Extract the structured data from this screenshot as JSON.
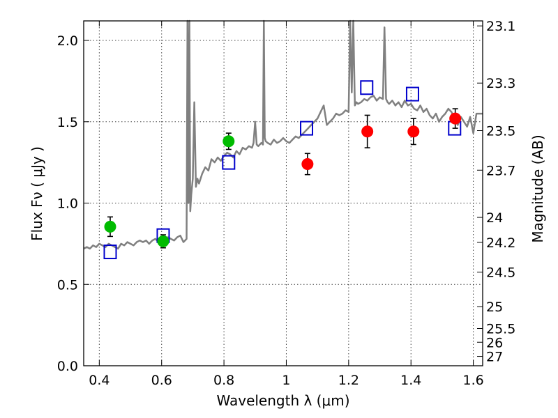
{
  "chart_data": {
    "type": "scatter",
    "xlabel": "Wavelength  λ (μm)",
    "ylabel": "Flux  Fν  ( μJy )",
    "y2label": "Magnitude (AB)",
    "xlim": [
      0.35,
      1.63
    ],
    "ylim": [
      0.0,
      2.12
    ],
    "x_ticks": [
      0.4,
      0.6,
      0.8,
      1.0,
      1.2,
      1.4,
      1.6
    ],
    "x_tick_labels": [
      "0.4",
      "0.6",
      "0.8",
      "1",
      "1.2",
      "1.4",
      "1.6"
    ],
    "y_ticks": [
      0.0,
      0.5,
      1.0,
      1.5,
      2.0
    ],
    "y_tick_labels": [
      "0.0",
      "0.5",
      "1.0",
      "1.5",
      "2.0"
    ],
    "y2_ticks": [
      "23.1",
      "23.3",
      "23.5",
      "23.7",
      "24",
      "24.2",
      "24.5",
      "25",
      "25.5",
      "26",
      "27"
    ],
    "grid": true,
    "colors": {
      "spectrum": "#808080",
      "green_points": "#00bb00",
      "red_points": "#ff0000",
      "model_squares": "#0000cc",
      "error_bars": "#000000"
    },
    "series": [
      {
        "kind": "line",
        "x": [
          0.35,
          0.36,
          0.37,
          0.38,
          0.39,
          0.4,
          0.41,
          0.42,
          0.43,
          0.44,
          0.45,
          0.46,
          0.47,
          0.48,
          0.49,
          0.5,
          0.51,
          0.52,
          0.53,
          0.54,
          0.55,
          0.56,
          0.57,
          0.58,
          0.59,
          0.6,
          0.61,
          0.62,
          0.63,
          0.64,
          0.65,
          0.66,
          0.67,
          0.68,
          0.683,
          0.686,
          0.689,
          0.692,
          0.695,
          0.7,
          0.705,
          0.71,
          0.715,
          0.72,
          0.73,
          0.74,
          0.75,
          0.76,
          0.77,
          0.78,
          0.79,
          0.8,
          0.81,
          0.82,
          0.83,
          0.84,
          0.85,
          0.86,
          0.87,
          0.88,
          0.89,
          0.895,
          0.9,
          0.905,
          0.91,
          0.92,
          0.925,
          0.928,
          0.931,
          0.934,
          0.94,
          0.95,
          0.96,
          0.97,
          0.98,
          0.99,
          1.0,
          1.01,
          1.02,
          1.03,
          1.04,
          1.05,
          1.06,
          1.07,
          1.08,
          1.09,
          1.1,
          1.11,
          1.12,
          1.13,
          1.14,
          1.15,
          1.16,
          1.17,
          1.18,
          1.19,
          1.2,
          1.205,
          1.21,
          1.215,
          1.22,
          1.225,
          1.23,
          1.24,
          1.25,
          1.26,
          1.27,
          1.28,
          1.29,
          1.3,
          1.31,
          1.315,
          1.32,
          1.325,
          1.33,
          1.34,
          1.35,
          1.36,
          1.37,
          1.38,
          1.39,
          1.4,
          1.41,
          1.42,
          1.43,
          1.44,
          1.45,
          1.46,
          1.47,
          1.48,
          1.49,
          1.5,
          1.51,
          1.52,
          1.53,
          1.54,
          1.55,
          1.56,
          1.57,
          1.58,
          1.59,
          1.6,
          1.61,
          1.62,
          1.63
        ],
        "y": [
          0.72,
          0.73,
          0.72,
          0.74,
          0.73,
          0.75,
          0.74,
          0.73,
          0.75,
          0.74,
          0.73,
          0.72,
          0.75,
          0.74,
          0.76,
          0.75,
          0.74,
          0.76,
          0.77,
          0.76,
          0.77,
          0.75,
          0.77,
          0.78,
          0.76,
          0.77,
          0.78,
          0.79,
          0.78,
          0.77,
          0.79,
          0.8,
          0.76,
          0.78,
          2.12,
          1.0,
          2.12,
          0.95,
          1.05,
          1.15,
          1.62,
          1.1,
          1.15,
          1.12,
          1.18,
          1.22,
          1.2,
          1.27,
          1.25,
          1.28,
          1.26,
          1.29,
          1.31,
          1.3,
          1.28,
          1.32,
          1.3,
          1.34,
          1.33,
          1.35,
          1.34,
          1.37,
          1.5,
          1.36,
          1.35,
          1.37,
          1.36,
          2.12,
          1.4,
          1.38,
          1.37,
          1.36,
          1.39,
          1.37,
          1.38,
          1.4,
          1.38,
          1.37,
          1.39,
          1.41,
          1.4,
          1.42,
          1.44,
          1.46,
          1.48,
          1.5,
          1.52,
          1.56,
          1.6,
          1.48,
          1.5,
          1.52,
          1.55,
          1.54,
          1.55,
          1.57,
          1.56,
          2.12,
          1.68,
          2.12,
          1.6,
          1.62,
          1.61,
          1.62,
          1.64,
          1.63,
          1.65,
          1.66,
          1.63,
          1.65,
          1.64,
          2.08,
          1.64,
          1.62,
          1.61,
          1.63,
          1.6,
          1.62,
          1.59,
          1.63,
          1.6,
          1.61,
          1.58,
          1.57,
          1.6,
          1.56,
          1.58,
          1.54,
          1.52,
          1.55,
          1.5,
          1.53,
          1.55,
          1.58,
          1.56,
          1.52,
          1.48,
          1.53,
          1.5,
          1.47,
          1.53,
          1.43,
          1.55,
          1.55,
          1.55
        ]
      },
      {
        "kind": "points",
        "marker": "circle",
        "color": "green",
        "x": [
          0.435,
          0.605,
          0.815
        ],
        "y": [
          0.855,
          0.765,
          1.38
        ],
        "err": [
          0.06,
          0.04,
          0.05
        ]
      },
      {
        "kind": "points",
        "marker": "circle",
        "color": "red",
        "x": [
          1.068,
          1.26,
          1.408,
          1.542
        ],
        "y": [
          1.24,
          1.44,
          1.44,
          1.52
        ],
        "err": [
          0.065,
          0.1,
          0.08,
          0.06
        ]
      },
      {
        "kind": "points",
        "marker": "square",
        "color": "blue",
        "x": [
          0.435,
          0.605,
          0.815,
          1.065,
          1.258,
          1.405,
          1.54
        ],
        "y": [
          0.7,
          0.8,
          1.25,
          1.46,
          1.71,
          1.67,
          1.46
        ]
      }
    ]
  }
}
